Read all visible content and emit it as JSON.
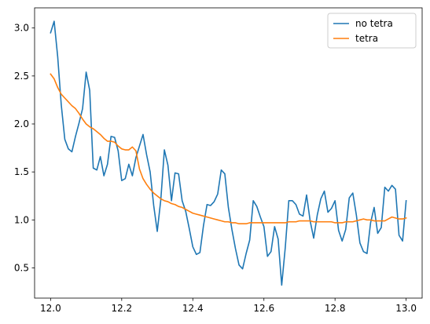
{
  "chart_data": {
    "type": "line",
    "title": "",
    "xlabel": "",
    "ylabel": "",
    "xlim": [
      11.955,
      13.045
    ],
    "ylim": [
      0.185,
      3.21
    ],
    "grid": false,
    "legend_position": "top-right",
    "x_ticks": [
      12.0,
      12.2,
      12.4,
      12.6,
      12.8,
      13.0
    ],
    "x_tick_labels": [
      "12.0",
      "12.2",
      "12.4",
      "12.6",
      "12.8",
      "13.0"
    ],
    "y_ticks": [
      0.5,
      1.0,
      1.5,
      2.0,
      2.5,
      3.0
    ],
    "y_tick_labels": [
      "0.5",
      "1.0",
      "1.5",
      "2.0",
      "2.5",
      "3.0"
    ],
    "x": [
      12.0,
      12.01,
      12.02,
      12.03,
      12.04,
      12.05,
      12.06,
      12.07,
      12.08,
      12.09,
      12.1,
      12.11,
      12.12,
      12.13,
      12.14,
      12.15,
      12.16,
      12.17,
      12.18,
      12.19,
      12.2,
      12.21,
      12.22,
      12.23,
      12.24,
      12.25,
      12.26,
      12.27,
      12.28,
      12.29,
      12.3,
      12.31,
      12.32,
      12.33,
      12.34,
      12.35,
      12.36,
      12.37,
      12.38,
      12.39,
      12.4,
      12.41,
      12.42,
      12.43,
      12.44,
      12.45,
      12.46,
      12.47,
      12.48,
      12.49,
      12.5,
      12.51,
      12.52,
      12.53,
      12.54,
      12.55,
      12.56,
      12.57,
      12.58,
      12.59,
      12.6,
      12.61,
      12.62,
      12.63,
      12.64,
      12.65,
      12.66,
      12.67,
      12.68,
      12.69,
      12.7,
      12.71,
      12.72,
      12.73,
      12.74,
      12.75,
      12.76,
      12.77,
      12.78,
      12.79,
      12.8,
      12.81,
      12.82,
      12.83,
      12.84,
      12.85,
      12.86,
      12.87,
      12.88,
      12.89,
      12.9,
      12.91,
      12.92,
      12.93,
      12.94,
      12.95,
      12.96,
      12.97,
      12.98,
      12.99,
      13.0
    ],
    "series": [
      {
        "name": "no tetra",
        "color": "#1f77b4",
        "values": [
          2.95,
          3.07,
          2.7,
          2.2,
          1.84,
          1.74,
          1.71,
          1.87,
          2.01,
          2.16,
          2.54,
          2.35,
          1.54,
          1.52,
          1.66,
          1.46,
          1.58,
          1.87,
          1.86,
          1.72,
          1.41,
          1.43,
          1.58,
          1.46,
          1.65,
          1.77,
          1.89,
          1.68,
          1.5,
          1.15,
          0.88,
          1.21,
          1.73,
          1.57,
          1.2,
          1.49,
          1.48,
          1.2,
          1.09,
          0.91,
          0.72,
          0.64,
          0.66,
          0.94,
          1.16,
          1.15,
          1.19,
          1.27,
          1.52,
          1.48,
          1.13,
          0.9,
          0.7,
          0.53,
          0.49,
          0.65,
          0.79,
          1.2,
          1.14,
          1.03,
          0.93,
          0.62,
          0.67,
          0.93,
          0.8,
          0.32,
          0.71,
          1.2,
          1.2,
          1.16,
          1.06,
          1.04,
          1.26,
          0.99,
          0.81,
          1.05,
          1.22,
          1.3,
          1.08,
          1.12,
          1.2,
          0.89,
          0.78,
          0.9,
          1.23,
          1.28,
          1.05,
          0.76,
          0.67,
          0.65,
          0.97,
          1.13,
          0.86,
          0.92,
          1.34,
          1.3,
          1.36,
          1.32,
          0.84,
          0.78,
          1.2
        ]
      },
      {
        "name": "tetra",
        "color": "#ff7f0e",
        "values": [
          2.52,
          2.47,
          2.38,
          2.31,
          2.27,
          2.23,
          2.19,
          2.16,
          2.11,
          2.05,
          2.0,
          1.97,
          1.95,
          1.92,
          1.89,
          1.85,
          1.82,
          1.82,
          1.81,
          1.77,
          1.74,
          1.73,
          1.73,
          1.76,
          1.72,
          1.53,
          1.43,
          1.37,
          1.32,
          1.28,
          1.25,
          1.22,
          1.2,
          1.19,
          1.17,
          1.16,
          1.14,
          1.13,
          1.11,
          1.09,
          1.07,
          1.06,
          1.05,
          1.04,
          1.03,
          1.02,
          1.01,
          1.0,
          0.99,
          0.98,
          0.98,
          0.97,
          0.97,
          0.96,
          0.96,
          0.96,
          0.97,
          0.97,
          0.97,
          0.97,
          0.97,
          0.97,
          0.97,
          0.97,
          0.97,
          0.97,
          0.97,
          0.98,
          0.98,
          0.98,
          0.99,
          0.99,
          0.99,
          0.99,
          0.98,
          0.98,
          0.98,
          0.98,
          0.98,
          0.98,
          0.97,
          0.97,
          0.97,
          0.98,
          0.98,
          0.98,
          0.99,
          1.0,
          1.01,
          1.0,
          1.0,
          0.99,
          0.99,
          0.99,
          0.99,
          1.01,
          1.03,
          1.02,
          1.01,
          1.01,
          1.02
        ]
      }
    ]
  }
}
